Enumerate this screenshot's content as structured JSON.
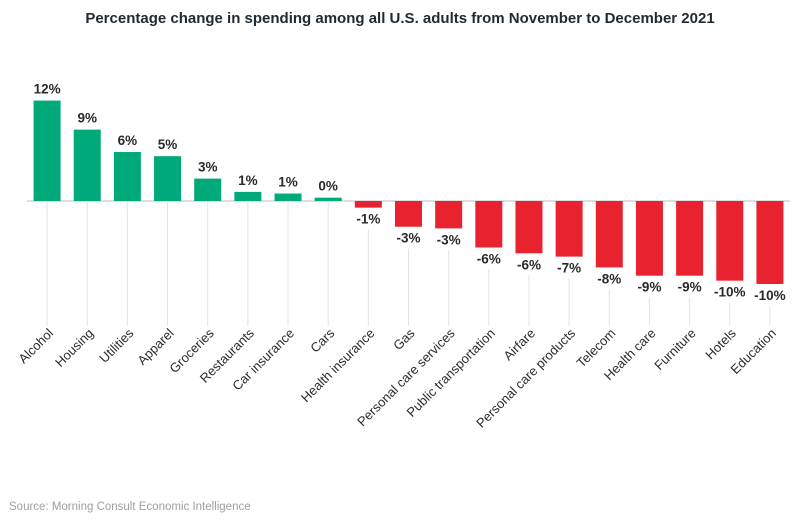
{
  "chart_data": {
    "type": "bar",
    "title": "Percentage change in spending among all U.S. adults from November to December 2021",
    "categories": [
      "Alcohol",
      "Housing",
      "Utilities",
      "Apparel",
      "Groceries",
      "Restaurants",
      "Car insurance",
      "Cars",
      "Health insurance",
      "Gas",
      "Personal care services",
      "Public transportation",
      "Airfare",
      "Personal care products",
      "Telecom",
      "Health care",
      "Furniture",
      "Hotels",
      "Education"
    ],
    "values": [
      12.1,
      8.6,
      5.9,
      5.4,
      2.7,
      1.1,
      0.9,
      0.4,
      -0.8,
      -3.1,
      -3.3,
      -5.6,
      -6.3,
      -6.7,
      -8.0,
      -9.0,
      -9.0,
      -9.6,
      -10.0
    ],
    "labels": [
      "12%",
      "9%",
      "6%",
      "5%",
      "3%",
      "1%",
      "1%",
      "0%",
      "-1%",
      "-3%",
      "-3%",
      "-6%",
      "-6%",
      "-7%",
      "-8%",
      "-9%",
      "-9%",
      "-10%",
      "-10%"
    ],
    "xlabel": "",
    "ylabel": "",
    "ylim": [
      -15,
      15
    ],
    "colors": {
      "positive": "#00a97a",
      "negative": "#e8222f",
      "baseline": "#bdbdbd",
      "guide": "#e3e3e3"
    },
    "source": "Source: Morning Consult Economic Intelligence"
  }
}
